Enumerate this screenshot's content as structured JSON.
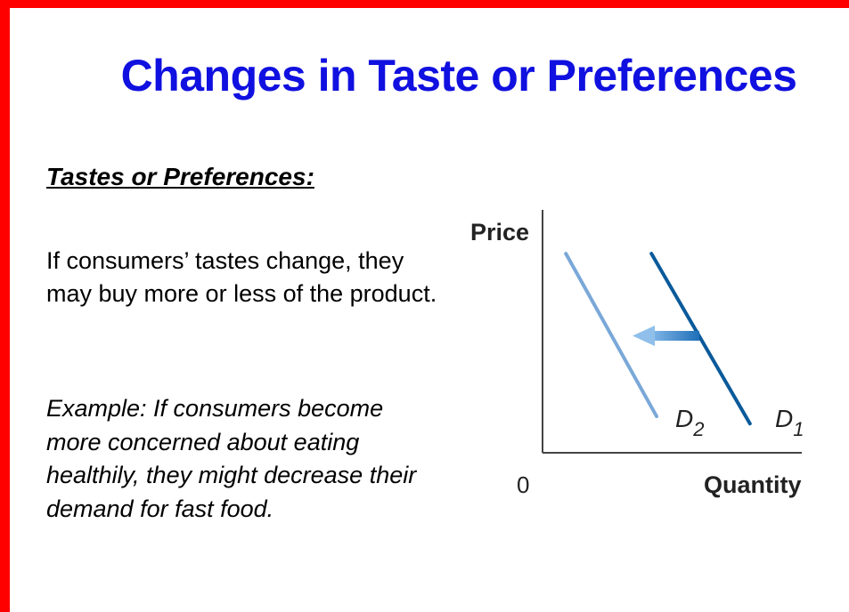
{
  "slide": {
    "title": "Changes in Taste or Preferences",
    "heading": "Tastes or Preferences:",
    "paragraph": "If consumers’ tastes change, they may buy more or less of the product.",
    "example": "Example: If consumers become more concerned about eating healthily, they might decrease their demand for fast food.",
    "border_color": "#ff0000",
    "title_color": "#1010e0"
  },
  "chart_data": {
    "type": "line",
    "xlabel": "Quantity",
    "ylabel": "Price",
    "origin_label": "0",
    "grid": false,
    "series": [
      {
        "name": "D1",
        "label_main": "D",
        "label_sub": "1",
        "color": "#0a5a9a",
        "points": [
          [
            0.42,
            0.82
          ],
          [
            0.8,
            0.12
          ]
        ]
      },
      {
        "name": "D2",
        "label_main": "D",
        "label_sub": "2",
        "color": "#7aa8d8",
        "points": [
          [
            0.09,
            0.82
          ],
          [
            0.44,
            0.15
          ]
        ]
      }
    ],
    "annotations": [
      {
        "type": "arrow",
        "direction": "left",
        "meaning": "demand shifts from D1 to D2",
        "color": "#2e7ec7"
      }
    ]
  }
}
